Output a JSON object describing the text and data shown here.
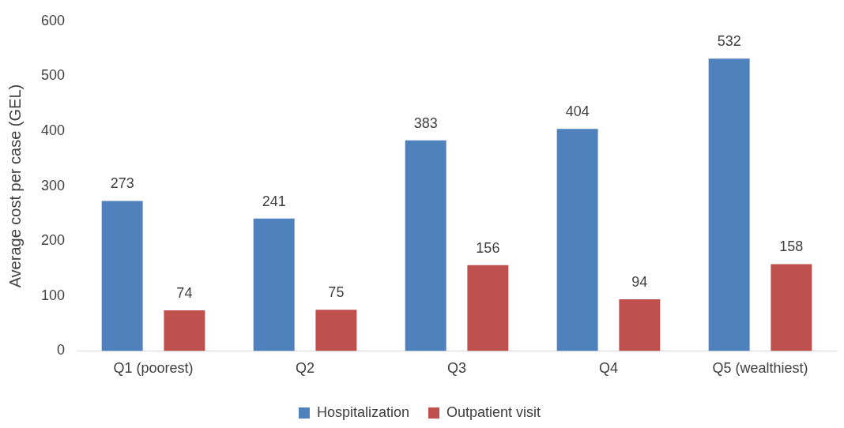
{
  "chart_data": {
    "type": "bar",
    "ylabel": "Average cost per case (GEL)",
    "categories": [
      "Q1 (poorest)",
      "Q2",
      "Q3",
      "Q4",
      "Q5 (wealthiest)"
    ],
    "series": [
      {
        "name": "Hospitalization",
        "color": "#4f81bd",
        "values": [
          273,
          241,
          383,
          404,
          532
        ]
      },
      {
        "name": "Outpatient visit",
        "color": "#c0504d",
        "values": [
          74,
          75,
          156,
          94,
          158
        ]
      }
    ],
    "ylim": [
      0,
      600
    ],
    "yticks": [
      0,
      100,
      200,
      300,
      400,
      500,
      600
    ],
    "grid": false,
    "legend": "bottom",
    "data_labels": true
  }
}
